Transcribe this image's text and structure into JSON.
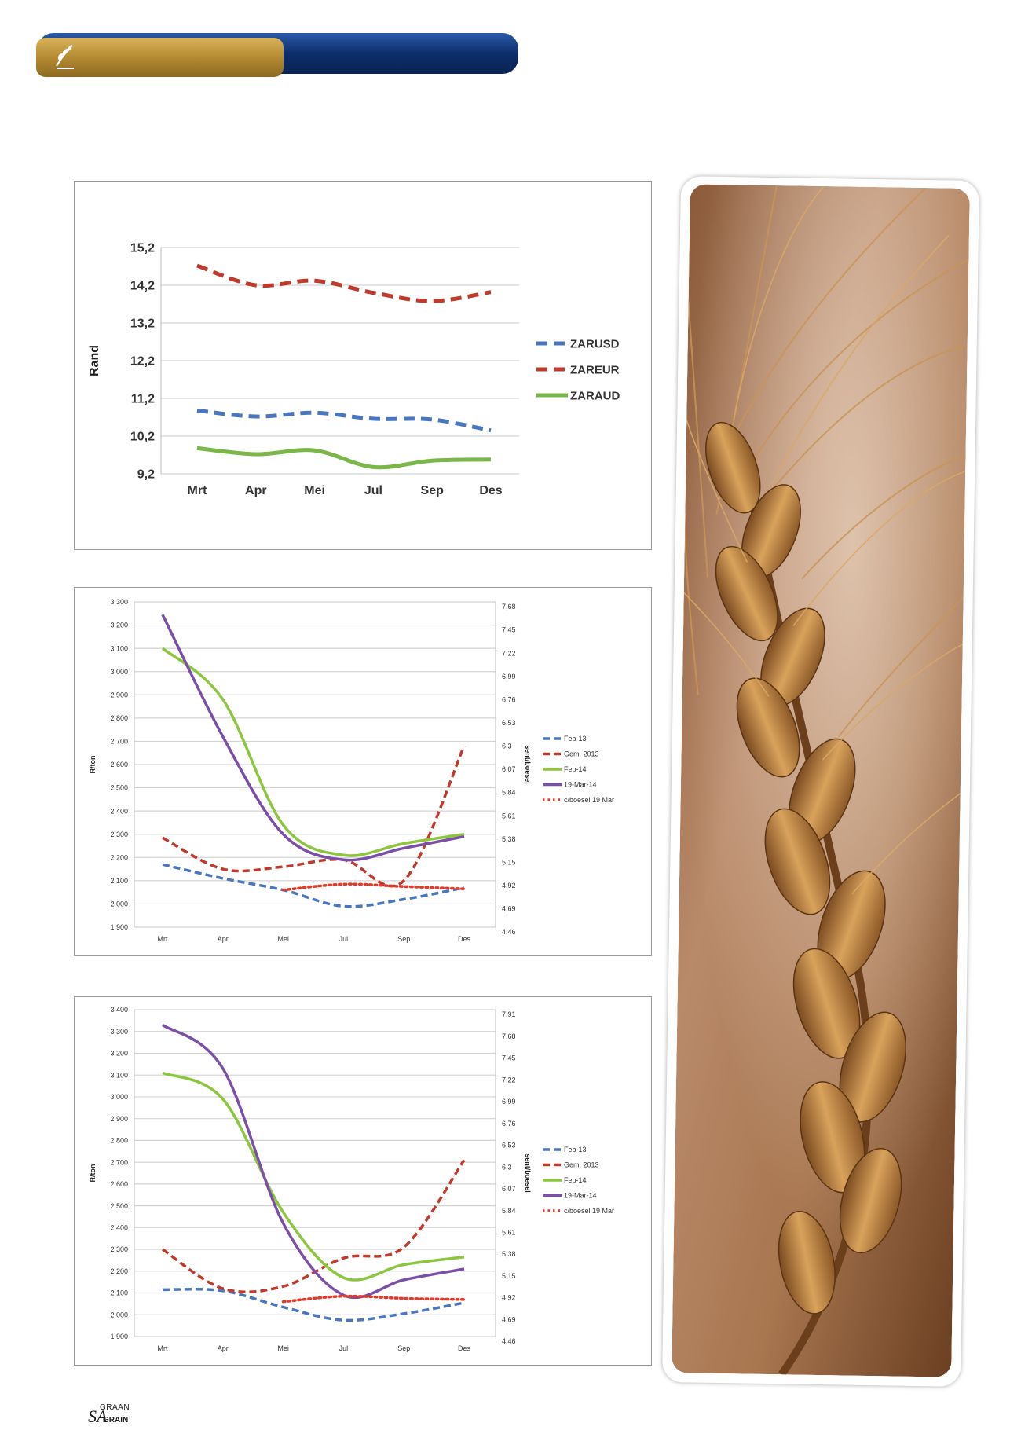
{
  "colors": {
    "header_gold": "#b58a32",
    "header_navy": "#0d2e6b",
    "grid": "#d4d4d4",
    "zarusd": "#4a76c0",
    "zareur": "#c0392b",
    "zaraud": "#7ab648",
    "feb13": "#4a76c0",
    "gem2013": "#c0392b",
    "feb14": "#8cc63f",
    "mar14": "#7b4fa8",
    "boesel": "#e03a2a"
  },
  "footer": {
    "logo_top": "GRAAN",
    "logo_sa": "SA",
    "logo_bottom": "GRAIN"
  },
  "chart_data": [
    {
      "type": "line",
      "categories": [
        "Mrt",
        "Apr",
        "Mei",
        "Jul",
        "Sep",
        "Des"
      ],
      "ylabel": "Rand",
      "ylim": [
        9.2,
        15.2
      ],
      "y_ticks": [
        "15,2",
        "14,2",
        "13,2",
        "12,2",
        "11,2",
        "10,2",
        "9,2"
      ],
      "legend_position": "right",
      "series": [
        {
          "name": "ZARUSD",
          "style": "dashed",
          "color": "zarusd",
          "values": [
            10.88,
            10.72,
            10.82,
            10.66,
            10.64,
            10.35
          ]
        },
        {
          "name": "ZAREUR",
          "style": "dashed",
          "color": "zareur",
          "values": [
            14.72,
            14.2,
            14.32,
            14.0,
            13.78,
            14.02
          ]
        },
        {
          "name": "ZARAUD",
          "style": "solid",
          "color": "zaraud",
          "values": [
            9.88,
            9.72,
            9.82,
            9.38,
            9.55,
            9.58
          ]
        }
      ]
    },
    {
      "type": "line",
      "categories": [
        "Mrt",
        "Apr",
        "Mei",
        "Jul",
        "Sep",
        "Des"
      ],
      "ylabel": "R/ton",
      "y2label": "sent/boesel",
      "ylim": [
        1900,
        3300
      ],
      "y_ticks": [
        "3 300",
        "3 200",
        "3 100",
        "3 000",
        "2 900",
        "2 800",
        "2 700",
        "2 600",
        "2 500",
        "2 400",
        "2 300",
        "2 200",
        "2 100",
        "2 000",
        "1 900"
      ],
      "y2_ticks": [
        "7,68",
        "7,45",
        "7,22",
        "6,99",
        "6,76",
        "6,53",
        "6,3",
        "6,07",
        "5,84",
        "5,61",
        "5,38",
        "5,15",
        "4,92",
        "4,69",
        "4,46"
      ],
      "legend_position": "right",
      "series": [
        {
          "name": "Feb-13",
          "style": "dashed",
          "color": "feb13",
          "values": [
            2170,
            2110,
            2060,
            1990,
            2020,
            2070
          ]
        },
        {
          "name": "Gem. 2013",
          "style": "dashed",
          "color": "gem2013",
          "values": [
            2285,
            2150,
            2160,
            2190,
            2100,
            2680
          ]
        },
        {
          "name": "Feb-14",
          "style": "solid",
          "color": "feb14",
          "values": [
            3100,
            2880,
            2340,
            2210,
            2260,
            2300
          ]
        },
        {
          "name": "19-Mar-14",
          "style": "solid",
          "color": "mar14",
          "values": [
            3245,
            2720,
            2300,
            2190,
            2240,
            2290
          ]
        },
        {
          "name": "c/boesel 19 Mar",
          "style": "dotted",
          "color": "boesel",
          "values": [
            null,
            null,
            2060,
            2085,
            2075,
            2065
          ]
        }
      ]
    },
    {
      "type": "line",
      "categories": [
        "Mrt",
        "Apr",
        "Mei",
        "Jul",
        "Sep",
        "Des"
      ],
      "ylabel": "R/ton",
      "y2label": "sent/boesel",
      "ylim": [
        1900,
        3400
      ],
      "y_ticks": [
        "3 400",
        "3 300",
        "3 200",
        "3 100",
        "3 000",
        "2 900",
        "2 800",
        "2 700",
        "2 600",
        "2 500",
        "2 400",
        "2 300",
        "2 200",
        "2 100",
        "2 000",
        "1 900"
      ],
      "y2_ticks": [
        "7,91",
        "7,68",
        "7,45",
        "7,22",
        "6,99",
        "6,76",
        "6,53",
        "6,3",
        "6,07",
        "5,84",
        "5,61",
        "5,38",
        "5,15",
        "4,92",
        "4,69",
        "4,46"
      ],
      "legend_position": "right",
      "series": [
        {
          "name": "Feb-13",
          "style": "dashed",
          "color": "feb13",
          "values": [
            2115,
            2110,
            2035,
            1975,
            2005,
            2055
          ]
        },
        {
          "name": "Gem. 2013",
          "style": "dashed",
          "color": "gem2013",
          "values": [
            2300,
            2120,
            2130,
            2260,
            2310,
            2710
          ]
        },
        {
          "name": "Feb-14",
          "style": "solid",
          "color": "feb14",
          "values": [
            3110,
            2990,
            2470,
            2170,
            2230,
            2265
          ]
        },
        {
          "name": "19-Mar-14",
          "style": "solid",
          "color": "mar14",
          "values": [
            3330,
            3130,
            2420,
            2090,
            2160,
            2210
          ]
        },
        {
          "name": "c/boesel 19 Mar",
          "style": "dotted",
          "color": "boesel",
          "values": [
            null,
            null,
            2060,
            2085,
            2075,
            2070
          ]
        }
      ]
    }
  ]
}
